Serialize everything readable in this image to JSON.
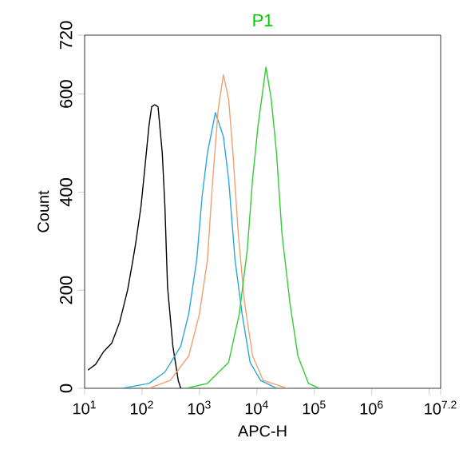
{
  "chart_data": {
    "type": "line",
    "title": "P1",
    "xlabel": "APC-H",
    "ylabel": "Count",
    "log": "x",
    "marker": "none",
    "line_style": "solid",
    "xlim": [
      10,
      15848932
    ],
    "ylim": [
      0,
      720
    ],
    "xticks": [
      {
        "value": 10,
        "label": "10$^{1}$"
      },
      {
        "value": 100,
        "label": "10$^{2}$"
      },
      {
        "value": 1000,
        "label": "10$^{3}$"
      },
      {
        "value": 10000,
        "label": "10$^{4}$"
      },
      {
        "value": 100000,
        "label": "10$^{5}$"
      },
      {
        "value": 1000000,
        "label": "10$^{6}$"
      },
      {
        "value": 10000000,
        "label": null
      },
      {
        "value": 15848932,
        "label": "10$^{7.2}$"
      }
    ],
    "yticks": [
      0,
      200,
      400,
      600,
      720
    ],
    "series": [
      {
        "color": "#000000",
        "x": [
          11.4,
          15.6,
          21.5,
          29.7,
          40.8,
          56.2,
          69.5,
          77.4,
          95.7,
          107,
          132,
          147,
          167,
          190,
          225,
          250,
          278,
          344,
          427,
          473
        ],
        "values": [
          37,
          49,
          75,
          92,
          135,
          201,
          262,
          295,
          370,
          426,
          535,
          574,
          578,
          574,
          480,
          371,
          207,
          86,
          16,
          0
        ]
      },
      {
        "color": "#29a9d9",
        "x": [
          45.5,
          132,
          250,
          473,
          651,
          897,
          1115,
          1377,
          1896,
          2612,
          3222,
          4159,
          5521,
          7603,
          11590,
          21980
        ],
        "values": [
          0,
          10,
          33,
          86,
          152,
          262,
          393,
          480,
          562,
          513,
          426,
          262,
          152,
          53,
          16,
          0
        ]
      },
      {
        "color": "#f0a070",
        "x": [
          132,
          310,
          651,
          1000,
          1377,
          1702,
          2113,
          2612,
          3222,
          3828,
          4732,
          6109,
          8414,
          12910,
          33730
        ],
        "values": [
          0,
          16,
          66,
          152,
          262,
          426,
          567,
          639,
          589,
          480,
          316,
          174,
          66,
          16,
          0
        ]
      },
      {
        "color": "#33cc33",
        "x": [
          588,
          1377,
          3222,
          4943,
          6810,
          8414,
          10450,
          14390,
          17780,
          21980,
          27290,
          37580,
          51760,
          78890,
          121200
        ],
        "values": [
          0,
          10,
          53,
          152,
          283,
          426,
          535,
          655,
          589,
          480,
          316,
          174,
          66,
          10,
          0
        ]
      }
    ]
  }
}
